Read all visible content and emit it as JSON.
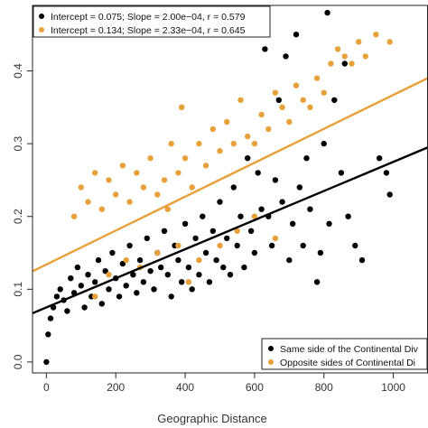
{
  "chart_data": {
    "type": "scatter",
    "xlabel": "Geographic Distance",
    "ylabel": "",
    "xlim": [
      -40,
      1100
    ],
    "ylim": [
      -0.015,
      0.49
    ],
    "x_ticks": [
      0,
      200,
      400,
      600,
      800,
      1000
    ],
    "y_ticks": [
      0.0,
      0.1,
      0.2,
      0.3,
      0.4
    ],
    "x_tick_labels": [
      "0",
      "200",
      "400",
      "600",
      "800",
      "1000"
    ],
    "y_tick_labels": [
      "0.0",
      "0.1",
      "0.2",
      "0.3",
      "0.4"
    ],
    "grid": false,
    "fit_legend_placement": "top-left",
    "group_legend_placement": "bottom-right",
    "series": [
      {
        "name": "Same side of the Continental Divide",
        "legend_label": "Same side of the Continental Div",
        "fit_label": "Intercept = 0.075; Slope = 2.00e−04, r = 0.579",
        "color": "#000000",
        "intercept": 0.075,
        "slope": 0.0002,
        "points": [
          [
            0,
            0.0
          ],
          [
            5,
            0.038
          ],
          [
            12,
            0.06
          ],
          [
            20,
            0.075
          ],
          [
            30,
            0.09
          ],
          [
            40,
            0.1
          ],
          [
            50,
            0.085
          ],
          [
            60,
            0.07
          ],
          [
            70,
            0.115
          ],
          [
            80,
            0.095
          ],
          [
            90,
            0.13
          ],
          [
            100,
            0.105
          ],
          [
            110,
            0.075
          ],
          [
            120,
            0.12
          ],
          [
            130,
            0.09
          ],
          [
            140,
            0.11
          ],
          [
            150,
            0.14
          ],
          [
            160,
            0.08
          ],
          [
            170,
            0.125
          ],
          [
            180,
            0.1
          ],
          [
            190,
            0.15
          ],
          [
            200,
            0.115
          ],
          [
            210,
            0.09
          ],
          [
            220,
            0.135
          ],
          [
            230,
            0.105
          ],
          [
            240,
            0.16
          ],
          [
            250,
            0.12
          ],
          [
            260,
            0.095
          ],
          [
            270,
            0.14
          ],
          [
            280,
            0.11
          ],
          [
            290,
            0.17
          ],
          [
            300,
            0.125
          ],
          [
            310,
            0.1
          ],
          [
            320,
            0.15
          ],
          [
            330,
            0.13
          ],
          [
            340,
            0.18
          ],
          [
            350,
            0.12
          ],
          [
            360,
            0.09
          ],
          [
            370,
            0.16
          ],
          [
            380,
            0.14
          ],
          [
            390,
            0.11
          ],
          [
            400,
            0.19
          ],
          [
            410,
            0.13
          ],
          [
            420,
            0.1
          ],
          [
            430,
            0.17
          ],
          [
            440,
            0.12
          ],
          [
            450,
            0.2
          ],
          [
            460,
            0.15
          ],
          [
            470,
            0.11
          ],
          [
            480,
            0.18
          ],
          [
            490,
            0.14
          ],
          [
            500,
            0.22
          ],
          [
            510,
            0.13
          ],
          [
            520,
            0.17
          ],
          [
            530,
            0.12
          ],
          [
            540,
            0.24
          ],
          [
            550,
            0.16
          ],
          [
            560,
            0.2
          ],
          [
            570,
            0.13
          ],
          [
            580,
            0.28
          ],
          [
            590,
            0.18
          ],
          [
            600,
            0.15
          ],
          [
            610,
            0.26
          ],
          [
            620,
            0.21
          ],
          [
            630,
            0.43
          ],
          [
            640,
            0.2
          ],
          [
            650,
            0.16
          ],
          [
            660,
            0.25
          ],
          [
            670,
            0.36
          ],
          [
            680,
            0.22
          ],
          [
            690,
            0.42
          ],
          [
            700,
            0.14
          ],
          [
            710,
            0.19
          ],
          [
            720,
            0.45
          ],
          [
            730,
            0.24
          ],
          [
            740,
            0.16
          ],
          [
            750,
            0.28
          ],
          [
            760,
            0.21
          ],
          [
            780,
            0.11
          ],
          [
            790,
            0.15
          ],
          [
            800,
            0.3
          ],
          [
            810,
            0.48
          ],
          [
            815,
            0.19
          ],
          [
            830,
            0.36
          ],
          [
            850,
            0.26
          ],
          [
            860,
            0.41
          ],
          [
            870,
            0.2
          ],
          [
            890,
            0.16
          ],
          [
            910,
            0.14
          ],
          [
            960,
            0.28
          ],
          [
            980,
            0.26
          ],
          [
            990,
            0.23
          ]
        ]
      },
      {
        "name": "Opposite sides of Continental Divide",
        "legend_label": "Opposite sides of Continental Di",
        "fit_label": "Intercept = 0.134; Slope = 2.33e−04, r = 0.645",
        "color": "#e8a13a",
        "intercept": 0.134,
        "slope": 0.000233,
        "points": [
          [
            80,
            0.2
          ],
          [
            100,
            0.24
          ],
          [
            120,
            0.22
          ],
          [
            140,
            0.26
          ],
          [
            160,
            0.21
          ],
          [
            180,
            0.25
          ],
          [
            200,
            0.23
          ],
          [
            220,
            0.27
          ],
          [
            240,
            0.22
          ],
          [
            260,
            0.26
          ],
          [
            280,
            0.24
          ],
          [
            300,
            0.28
          ],
          [
            320,
            0.23
          ],
          [
            340,
            0.25
          ],
          [
            350,
            0.21
          ],
          [
            360,
            0.3
          ],
          [
            380,
            0.26
          ],
          [
            390,
            0.35
          ],
          [
            400,
            0.28
          ],
          [
            420,
            0.24
          ],
          [
            440,
            0.3
          ],
          [
            460,
            0.27
          ],
          [
            480,
            0.32
          ],
          [
            500,
            0.29
          ],
          [
            520,
            0.33
          ],
          [
            540,
            0.3
          ],
          [
            560,
            0.36
          ],
          [
            580,
            0.31
          ],
          [
            600,
            0.3
          ],
          [
            620,
            0.34
          ],
          [
            640,
            0.32
          ],
          [
            660,
            0.37
          ],
          [
            680,
            0.35
          ],
          [
            700,
            0.33
          ],
          [
            720,
            0.38
          ],
          [
            740,
            0.36
          ],
          [
            760,
            0.35
          ],
          [
            780,
            0.39
          ],
          [
            800,
            0.37
          ],
          [
            820,
            0.41
          ],
          [
            840,
            0.43
          ],
          [
            860,
            0.42
          ],
          [
            880,
            0.41
          ],
          [
            900,
            0.44
          ],
          [
            920,
            0.42
          ],
          [
            950,
            0.45
          ],
          [
            990,
            0.44
          ],
          [
            140,
            0.09
          ],
          [
            180,
            0.12
          ],
          [
            230,
            0.14
          ],
          [
            270,
            0.13
          ],
          [
            320,
            0.15
          ],
          [
            380,
            0.16
          ],
          [
            410,
            0.11
          ],
          [
            440,
            0.14
          ],
          [
            500,
            0.16
          ],
          [
            550,
            0.18
          ],
          [
            600,
            0.2
          ],
          [
            660,
            0.17
          ]
        ]
      }
    ]
  }
}
